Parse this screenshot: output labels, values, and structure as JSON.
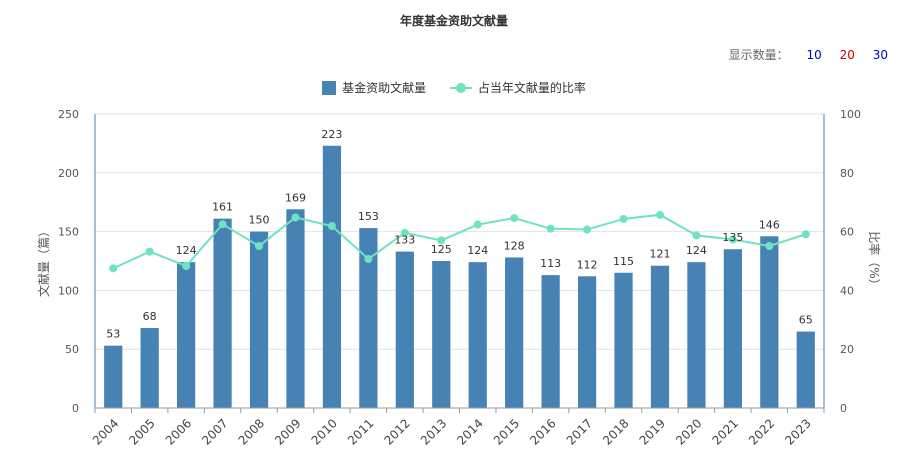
{
  "chart_data": {
    "type": "bar",
    "title": "年度基金资助文献量",
    "categories": [
      "2004",
      "2005",
      "2006",
      "2007",
      "2008",
      "2009",
      "2010",
      "2011",
      "2012",
      "2013",
      "2014",
      "2015",
      "2016",
      "2017",
      "2018",
      "2019",
      "2020",
      "2021",
      "2022",
      "2023"
    ],
    "series": [
      {
        "name": "基金资助文献量",
        "type": "bar",
        "axis": "left",
        "color": "#4682b4",
        "values": [
          53,
          68,
          124,
          161,
          150,
          169,
          223,
          153,
          133,
          125,
          124,
          128,
          113,
          112,
          115,
          121,
          124,
          135,
          146,
          65
        ]
      },
      {
        "name": "占当年文献量的比率",
        "type": "line",
        "axis": "right",
        "color": "#6fe3c0",
        "values": [
          47.5,
          53.2,
          48.3,
          62.5,
          55.1,
          64.8,
          61.9,
          50.7,
          59.6,
          57.0,
          62.4,
          64.6,
          61.0,
          60.7,
          64.3,
          65.7,
          58.7,
          57.3,
          55.1,
          59.1
        ]
      }
    ],
    "ylabel": "文献量（篇）",
    "y2label": "比率（%）",
    "ylim": [
      0,
      250
    ],
    "y2lim": [
      0,
      100
    ],
    "yticks": [
      0,
      50,
      100,
      150,
      200,
      250
    ],
    "y2ticks": [
      0,
      20,
      40,
      60,
      80,
      100
    ],
    "grid": true,
    "legend": "top-center"
  },
  "controls": {
    "count_label": "显示数量：",
    "options": [
      {
        "label": "10",
        "color": "#0000cc"
      },
      {
        "label": "20",
        "color": "#cc0000"
      },
      {
        "label": "30",
        "color": "#0000cc"
      }
    ]
  }
}
